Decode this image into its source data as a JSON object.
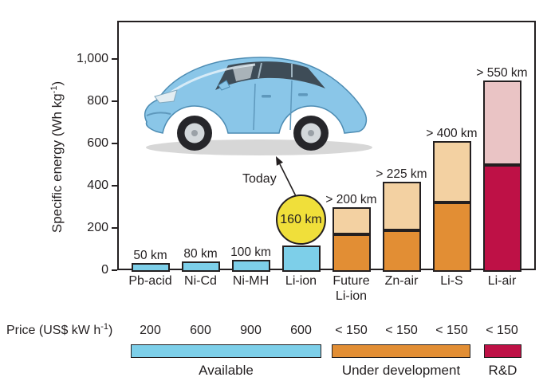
{
  "figure": {
    "today_label": "Today",
    "y_axis_label": {
      "pre": "Specific energy (Wh kg",
      "sup": "-1",
      "post": ")"
    },
    "price_label": {
      "pre": "Price (US$ kW h",
      "sup": "-1",
      "post": ")"
    },
    "colors": {
      "available": "#7DCFE9",
      "under_development": "#E28E34",
      "under_development_projected": "#F3D1A2",
      "rnd": "#BE1146",
      "rnd_projected": "#EAC4C5",
      "highlight_circle": "#F0DF3A",
      "ink": "#231F20"
    }
  },
  "chart_data": {
    "type": "bar",
    "title": "",
    "xlabel": "",
    "ylabel": "Specific energy (Wh kg-1)",
    "ylim": [
      0,
      1180
    ],
    "grid": false,
    "legend_position": "bottom",
    "yticks": [
      {
        "value": 0,
        "label": "0"
      },
      {
        "value": 200,
        "label": "200"
      },
      {
        "value": 400,
        "label": "400"
      },
      {
        "value": 600,
        "label": "600"
      },
      {
        "value": 800,
        "label": "800"
      },
      {
        "value": 1000,
        "label": "1,000"
      }
    ],
    "categories": [
      "Pb-acid",
      "Ni-Cd",
      "Ni-MH",
      "Li-ion",
      "Future Li-ion",
      "Zn-air",
      "Li-S",
      "Li-air"
    ],
    "bars": [
      {
        "category_lines": [
          "Pb-acid"
        ],
        "range_label": "50 km",
        "price": "200",
        "segments": [
          {
            "value": 35,
            "color_key": "available"
          }
        ]
      },
      {
        "category_lines": [
          "Ni-Cd"
        ],
        "range_label": "80 km",
        "price": "600",
        "segments": [
          {
            "value": 42,
            "color_key": "available"
          }
        ]
      },
      {
        "category_lines": [
          "Ni-MH"
        ],
        "range_label": "100 km",
        "price": "900",
        "segments": [
          {
            "value": 50,
            "color_key": "available"
          }
        ]
      },
      {
        "category_lines": [
          "Li-ion"
        ],
        "range_label": "160 km",
        "range_style": "circle",
        "price": "600",
        "segments": [
          {
            "value": 118,
            "color_key": "available"
          }
        ]
      },
      {
        "category_lines": [
          "Future",
          "Li-ion"
        ],
        "range_label": "> 200 km",
        "price": "< 150",
        "segments": [
          {
            "value": 170,
            "color_key": "under_development"
          },
          {
            "value": 130,
            "color_key": "under_development_projected"
          }
        ]
      },
      {
        "category_lines": [
          "Zn-air"
        ],
        "range_label": "> 225 km",
        "price": "< 150",
        "segments": [
          {
            "value": 190,
            "color_key": "under_development"
          },
          {
            "value": 230,
            "color_key": "under_development_projected"
          }
        ]
      },
      {
        "category_lines": [
          "Li-S"
        ],
        "range_label": "> 400 km",
        "price": "< 150",
        "segments": [
          {
            "value": 320,
            "color_key": "under_development"
          },
          {
            "value": 290,
            "color_key": "under_development_projected"
          }
        ]
      },
      {
        "category_lines": [
          "Li-air"
        ],
        "range_label": "> 550 km",
        "price": "< 150",
        "segments": [
          {
            "value": 500,
            "color_key": "rnd"
          },
          {
            "value": 400,
            "color_key": "rnd_projected"
          }
        ]
      }
    ],
    "legend": [
      {
        "label": "Available",
        "color_key": "available"
      },
      {
        "label": "Under development",
        "color_key": "under_development"
      },
      {
        "label": "R&D",
        "color_key": "rnd"
      }
    ]
  }
}
